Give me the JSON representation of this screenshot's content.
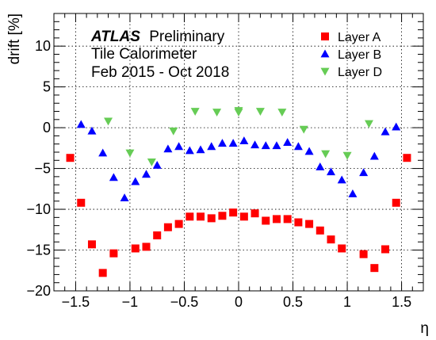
{
  "chart_data": {
    "type": "scatter",
    "xlabel": "η",
    "ylabel": "drift [%]",
    "xlim": [
      -1.7,
      1.7
    ],
    "ylim": [
      -20,
      14
    ],
    "xticks": [
      -1.5,
      -1,
      -0.5,
      0,
      0.5,
      1,
      1.5
    ],
    "xtick_labels": [
      "−1.5",
      "−1",
      "−0.5",
      "0",
      "0.5",
      "1",
      "1.5"
    ],
    "yticks": [
      -20,
      -15,
      -10,
      -5,
      0,
      5,
      10
    ],
    "ytick_labels": [
      "−20",
      "−15",
      "−10",
      "−5",
      "0",
      "5",
      "10"
    ],
    "grid": true,
    "legend_position": "top-right",
    "annotation": {
      "experiment": "ATLAS",
      "status": "Preliminary",
      "line2": "Tile Calorimeter",
      "line3": "Feb 2015 - Oct 2018"
    },
    "series": [
      {
        "name": "Layer A",
        "marker": "square",
        "color": "#ff0000",
        "x": [
          -1.55,
          -1.45,
          -1.35,
          -1.25,
          -1.15,
          -0.95,
          -0.85,
          -0.75,
          -0.65,
          -0.55,
          -0.45,
          -0.35,
          -0.25,
          -0.15,
          -0.05,
          0.05,
          0.15,
          0.25,
          0.35,
          0.45,
          0.55,
          0.65,
          0.75,
          0.85,
          0.95,
          1.15,
          1.25,
          1.35,
          1.45,
          1.55
        ],
        "y": [
          -3.7,
          -9.2,
          -14.3,
          -17.8,
          -15.4,
          -14.8,
          -14.6,
          -13.2,
          -12.2,
          -11.8,
          -10.9,
          -10.9,
          -11.1,
          -10.8,
          -10.4,
          -10.9,
          -10.5,
          -11.4,
          -11.2,
          -11.2,
          -11.6,
          -11.8,
          -12.6,
          -13.7,
          -14.8,
          -15.5,
          -17.2,
          -14.9,
          -9.2,
          -3.7
        ]
      },
      {
        "name": "Layer B",
        "marker": "triangle-up",
        "color": "#0000ff",
        "x": [
          -1.45,
          -1.35,
          -1.25,
          -1.15,
          -1.05,
          -0.95,
          -0.85,
          -0.75,
          -0.65,
          -0.55,
          -0.45,
          -0.35,
          -0.25,
          -0.15,
          -0.05,
          0.05,
          0.15,
          0.25,
          0.35,
          0.45,
          0.55,
          0.65,
          0.75,
          0.85,
          0.95,
          1.05,
          1.15,
          1.25,
          1.35,
          1.45
        ],
        "y": [
          0.4,
          -0.4,
          -3.1,
          -6.1,
          -8.6,
          -6.6,
          -5.7,
          -4.6,
          -2.6,
          -2.3,
          -2.8,
          -2.7,
          -2.3,
          -1.9,
          -1.9,
          -1.6,
          -2.1,
          -2.2,
          -2.2,
          -1.8,
          -2.3,
          -2.9,
          -4.8,
          -5.4,
          -6.4,
          -8.1,
          -5.5,
          -3.5,
          -0.5,
          0.1
        ]
      },
      {
        "name": "Layer D",
        "marker": "triangle-down",
        "color": "#66cc55",
        "x": [
          -1.2,
          -1.0,
          -0.8,
          -0.6,
          -0.4,
          -0.2,
          0.0,
          0.0,
          0.2,
          0.4,
          0.6,
          0.8,
          1.0,
          1.2
        ],
        "y": [
          0.8,
          -3.1,
          -4.2,
          -0.4,
          2.0,
          1.9,
          2.1,
          1.9,
          2.0,
          1.9,
          -0.2,
          -3.2,
          -3.4,
          0.5
        ]
      }
    ]
  }
}
